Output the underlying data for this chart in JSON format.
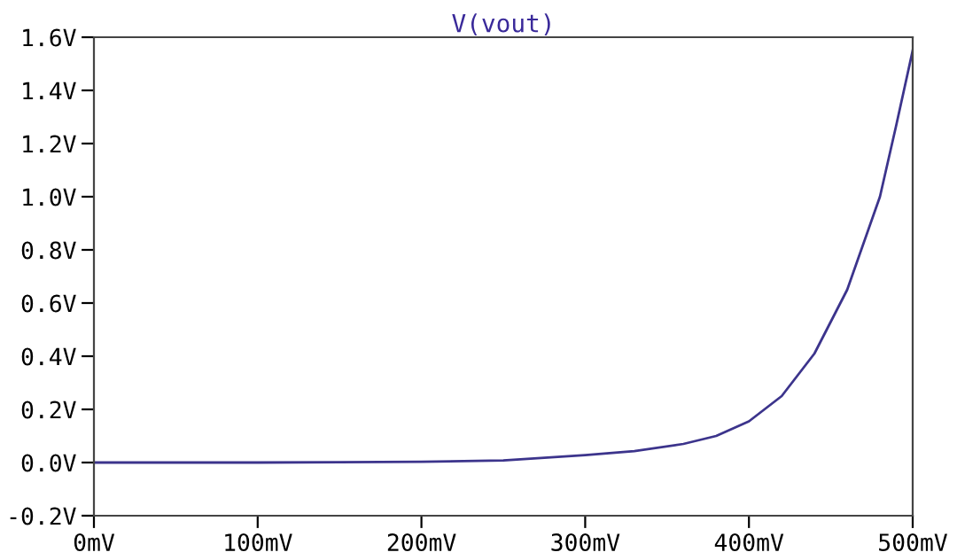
{
  "chart_data": {
    "type": "line",
    "title": "V(vout)",
    "x": [
      0,
      50,
      100,
      150,
      200,
      250,
      300,
      330,
      360,
      380,
      400,
      420,
      440,
      460,
      480,
      490,
      500
    ],
    "series": [
      {
        "color": "#3c348c",
        "values": [
          0.0,
          0.0,
          0.0,
          0.001,
          0.003,
          0.008,
          0.028,
          0.043,
          0.07,
          0.1,
          0.155,
          0.25,
          0.41,
          0.65,
          1.0,
          1.27,
          1.55
        ]
      }
    ],
    "xlim": [
      0,
      500
    ],
    "xticks": [
      {
        "value": 0,
        "label": "0mV"
      },
      {
        "value": 100,
        "label": "100mV"
      },
      {
        "value": 200,
        "label": "200mV"
      },
      {
        "value": 300,
        "label": "300mV"
      },
      {
        "value": 400,
        "label": "400mV"
      },
      {
        "value": 500,
        "label": "500mV"
      }
    ],
    "ylim": [
      -0.2,
      1.6
    ],
    "yticks": [
      {
        "value": -0.2,
        "label": "-0.2V"
      },
      {
        "value": 0.0,
        "label": "0.0V"
      },
      {
        "value": 0.2,
        "label": "0.2V"
      },
      {
        "value": 0.4,
        "label": "0.4V"
      },
      {
        "value": 0.6,
        "label": "0.6V"
      },
      {
        "value": 0.8,
        "label": "0.8V"
      },
      {
        "value": 1.0,
        "label": "1.0V"
      },
      {
        "value": 1.2,
        "label": "1.2V"
      },
      {
        "value": 1.4,
        "label": "1.4V"
      },
      {
        "value": 1.6,
        "label": "1.6V"
      }
    ],
    "grid": false,
    "legend": false,
    "marker": "none",
    "line_style": "solid"
  }
}
